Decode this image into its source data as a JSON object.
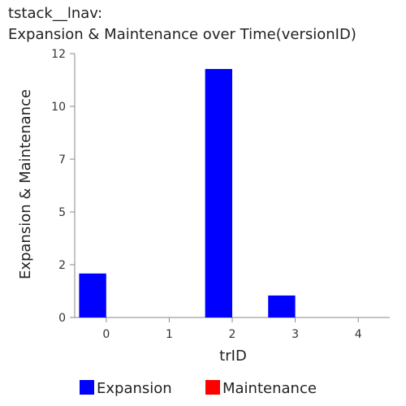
{
  "chart_data": {
    "type": "bar",
    "title_line1": "tstack__lnav:",
    "title_line2": "Expansion & Maintenance over Time(versionID)",
    "xlabel": "trID",
    "ylabel": "Expansion & Maintenance",
    "categories": [
      "0",
      "1",
      "2",
      "3",
      "4"
    ],
    "series": [
      {
        "name": "Expansion",
        "color": "#0000ff",
        "values": [
          2,
          0,
          11.3,
          1,
          0
        ]
      },
      {
        "name": "Maintenance",
        "color": "#ff0000",
        "values": [
          0,
          0,
          0,
          0,
          0
        ]
      }
    ],
    "ylim": [
      0,
      12
    ],
    "yticks": [
      0,
      2.4,
      4.8,
      7.2,
      9.6,
      12
    ],
    "ytick_labels": [
      "0",
      "2",
      "5",
      "7",
      "10",
      "12"
    ],
    "grid": false,
    "legend_position": "bottom"
  }
}
